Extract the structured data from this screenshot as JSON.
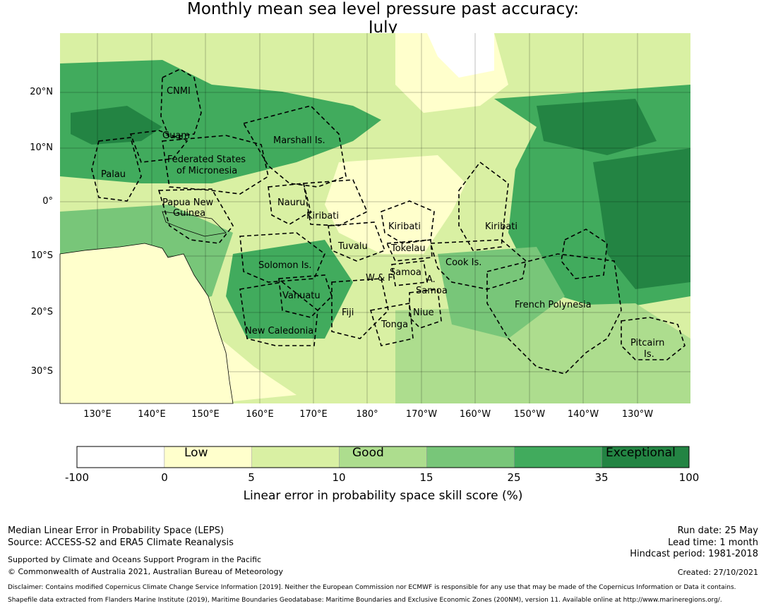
{
  "title": {
    "line1": "Monthly mean sea level pressure past accuracy:",
    "line2": "July"
  },
  "map": {
    "lat_labels": [
      "20°N",
      "10°N",
      "0°",
      "10°S",
      "20°S",
      "30°S"
    ],
    "lon_labels": [
      "130°E",
      "140°E",
      "150°E",
      "160°E",
      "170°E",
      "180°",
      "170°W",
      "160°W",
      "150°W",
      "140°W",
      "130°W"
    ],
    "regions": [
      "CNMI",
      "Guam",
      "Marshall Is.",
      "Federated States",
      "of Micronesia",
      "Palau",
      "Papua New",
      "Guinea",
      "Nauru",
      "Kiribati",
      "Kiribati",
      "Kiribati",
      "Tuvalu",
      "Tokelau",
      "Solomon Is.",
      "Samoa",
      "W & F",
      "A.",
      "Samoa",
      "Cook Is.",
      "Vanuatu",
      "Fiji",
      "Niue",
      "Tonga",
      "French Polynesia",
      "New Caledonia",
      "Pitcairn",
      "Is."
    ],
    "colors": {
      "ocean_light": "#d9f0a3",
      "ocean_low": "#ffffcc",
      "ocean_mid": "#addd8e",
      "ocean_good": "#78c679",
      "ocean_high": "#41ab5d",
      "ocean_exceptional": "#238443"
    }
  },
  "colorbar": {
    "ticks": [
      "-100",
      "0",
      "5",
      "10",
      "15",
      "25",
      "35",
      "100"
    ],
    "categories": [
      "Low",
      "Good",
      "Exceptional"
    ],
    "colors": [
      "#ffffff",
      "#ffffcc",
      "#d9f0a3",
      "#addd8e",
      "#78c679",
      "#41ab5d",
      "#238443"
    ],
    "axis_title": "Linear error in probability space skill score (%)"
  },
  "footer": {
    "left1": "Median Linear Error in Probability Space (LEPS)",
    "left2": "Source: ACCESS-S2 and ERA5 Climate Reanalysis",
    "left3": "Supported by Climate and Oceans Support Program in the Pacific",
    "left4": "© Commonwealth of Australia 2021, Australian Bureau of Meteorology",
    "right1": "Run date: 25 May",
    "right2": "Lead time: 1 month",
    "right3": "Hindcast period: 1981-2018",
    "right4": "Created: 27/10/2021",
    "disclaimer": "Disclaimer: Contains modified Copernicus Climate Change Service Information [2019]. Neither the European Commission nor ECMWF is responsible for any use that may be made of the Copernicus Information or Data it contains.",
    "shapefile": "Shapefile data extracted from Flanders Marine Institute (2019), Maritime Boundaries Geodatabase: Maritime Boundaries and Exclusive Economic Zones (200NM), version 11. Available online at http://www.marineregions.org/."
  }
}
